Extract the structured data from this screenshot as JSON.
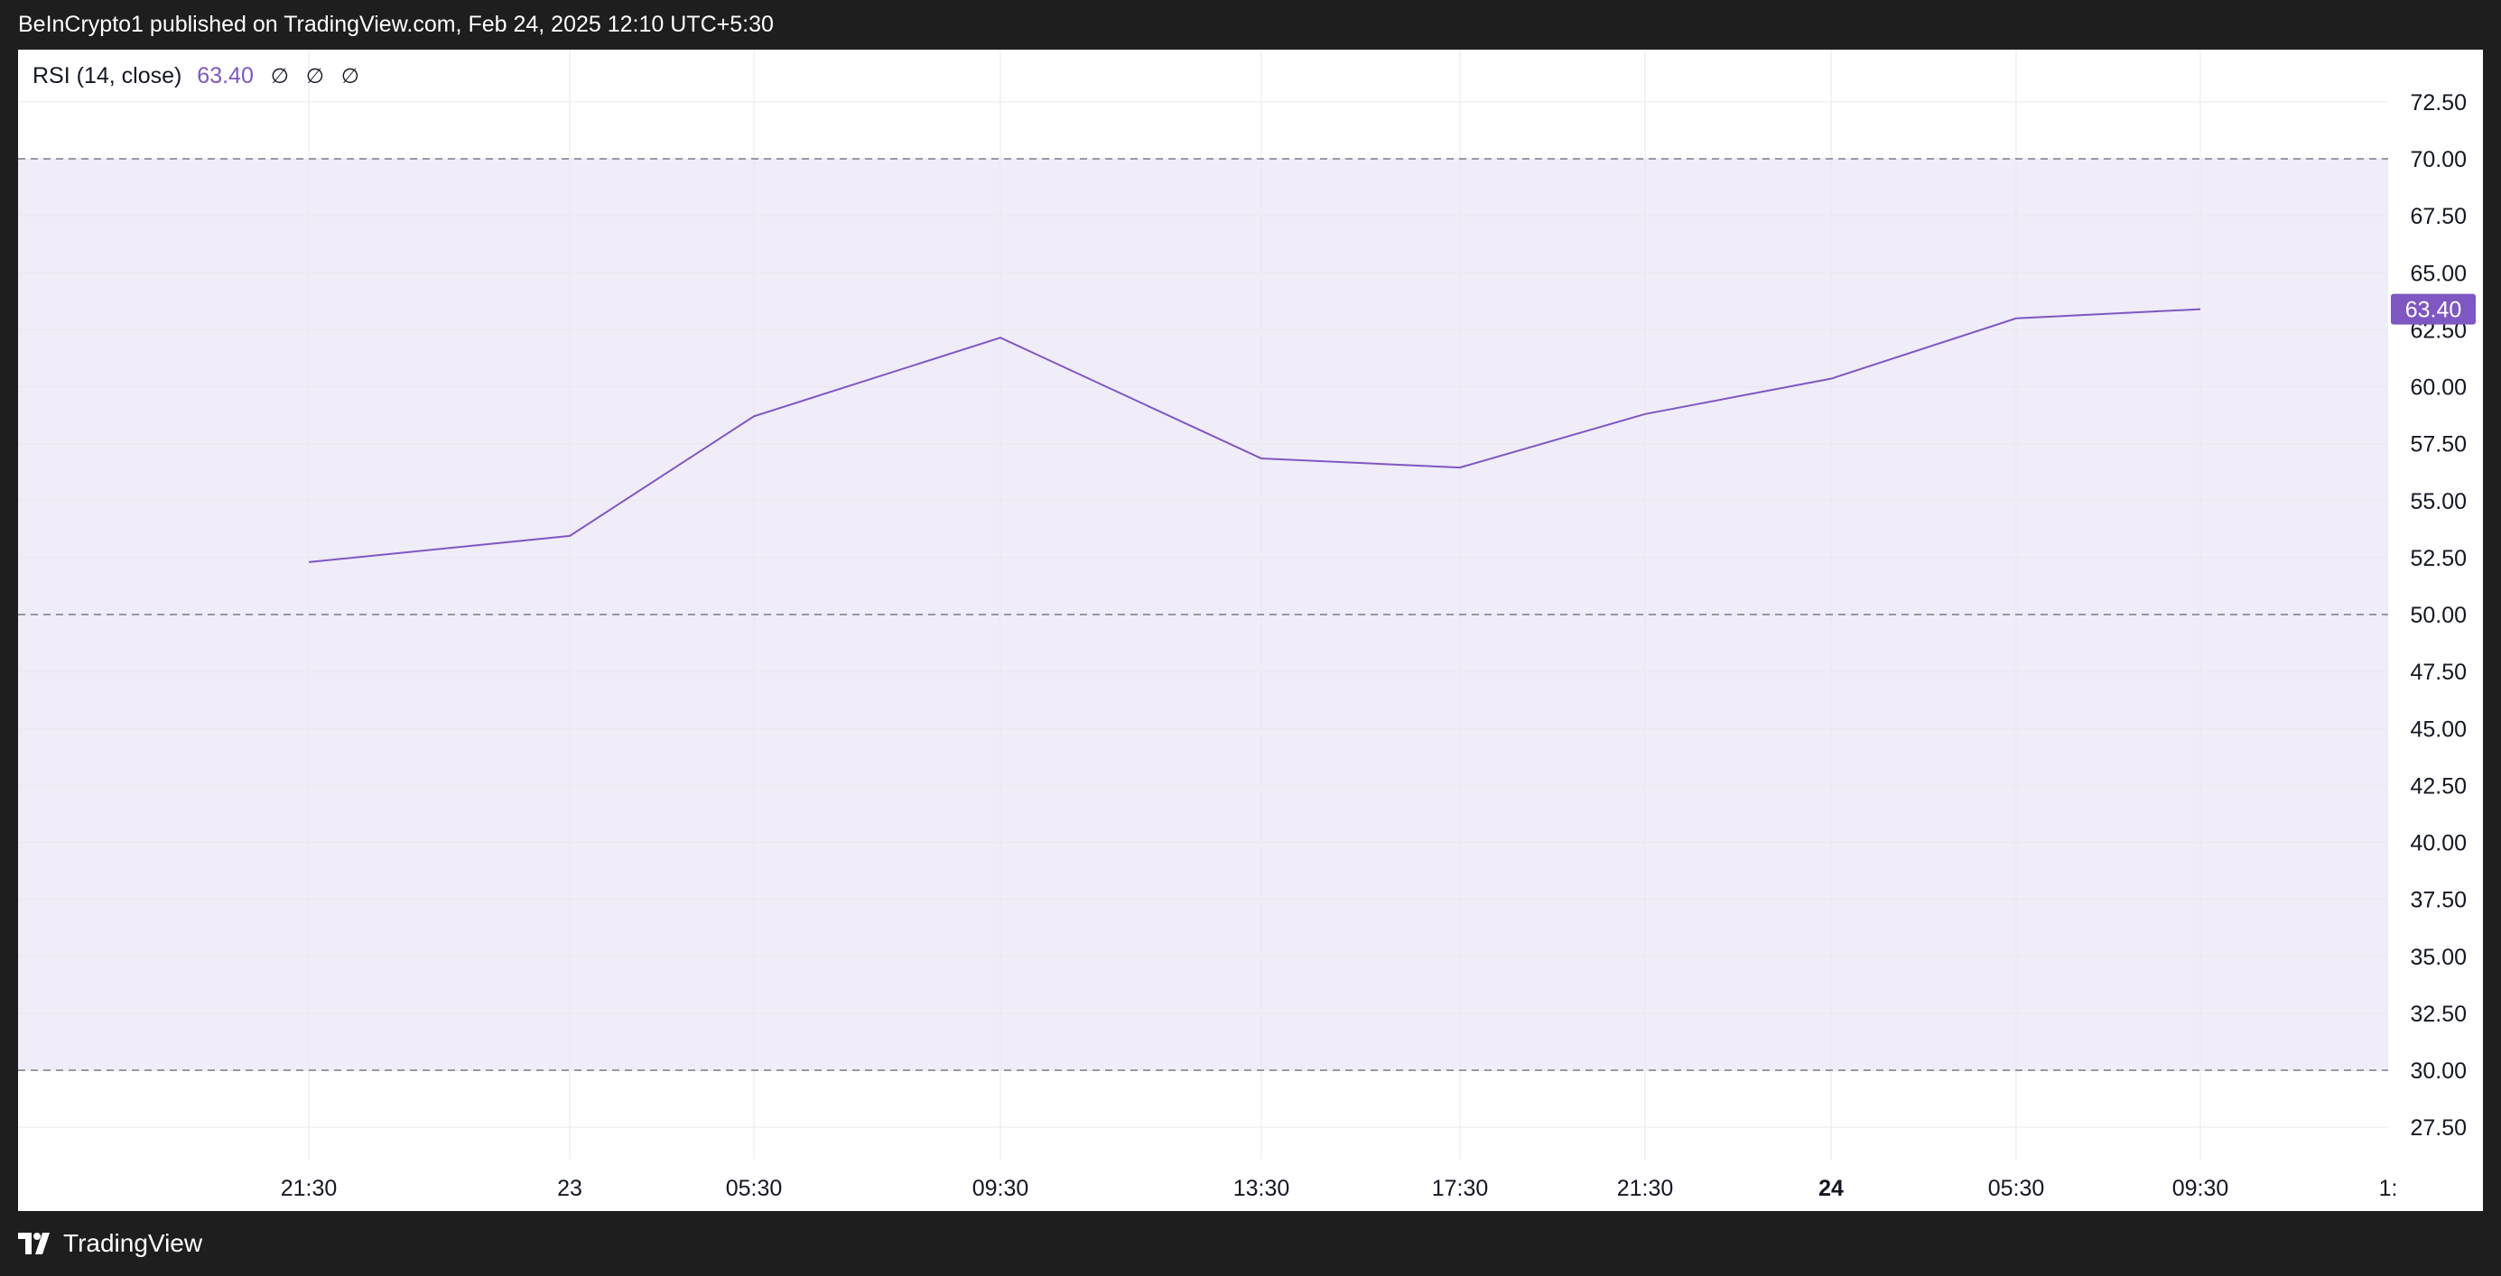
{
  "header": {
    "attribution": "BeInCrypto1 published on TradingView.com, Feb 24, 2025 12:10 UTC+5:30"
  },
  "legend": {
    "indicator": "RSI (14, close)",
    "value": "63.40",
    "na_marks": [
      "∅",
      "∅",
      "∅"
    ]
  },
  "footer": {
    "brand": "TradingView"
  },
  "colors": {
    "line": "#7e57c2",
    "band_fill": "#f0ecf8",
    "band_dash": "#787b86",
    "grid": "#e9e9ee",
    "frame": "#1e1e1e"
  },
  "chart_data": {
    "type": "line",
    "title": "RSI (14, close)",
    "x": [
      "21:30",
      "23",
      "05:30",
      "09:30",
      "13:30",
      "17:30",
      "21:30",
      "24",
      "05:30",
      "09:30"
    ],
    "x_bold": [
      "24"
    ],
    "x_trailing_partial": "1:",
    "series": [
      {
        "name": "RSI (14, close)",
        "values": [
          52.3,
          53.45,
          58.7,
          62.15,
          56.85,
          56.45,
          58.8,
          60.35,
          63.0,
          63.4
        ]
      }
    ],
    "last_value_label": "63.40",
    "ylim": [
      25.0,
      75.0
    ],
    "y_ticks": [
      "72.50",
      "70.00",
      "67.50",
      "65.00",
      "62.50",
      "60.00",
      "57.50",
      "55.00",
      "52.50",
      "50.00",
      "47.50",
      "45.00",
      "42.50",
      "40.00",
      "37.50",
      "35.00",
      "32.50",
      "30.00",
      "27.50"
    ],
    "bands": {
      "upper": 70,
      "middle": 50,
      "lower": 30
    },
    "grid": true
  }
}
